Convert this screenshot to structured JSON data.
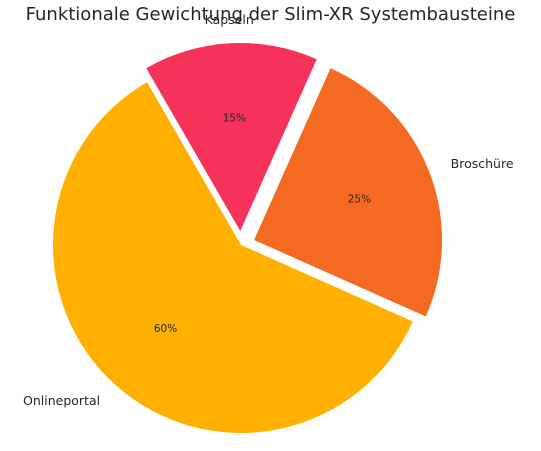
{
  "chart_data": {
    "type": "pie",
    "title": "Funktionale Gewichtung der Slim-XR Systembausteine",
    "categories": [
      "Onlineportal",
      "Broschüre",
      "Kapseln"
    ],
    "values": [
      60,
      25,
      15
    ],
    "value_labels": [
      "60%",
      "25%",
      "15%"
    ],
    "colors": [
      "#FFB000",
      "#F46A22",
      "#F7325A"
    ],
    "start_angle_deg": 120,
    "direction": "counterclockwise",
    "exploded": [
      false,
      true,
      true
    ],
    "legend": "none"
  }
}
